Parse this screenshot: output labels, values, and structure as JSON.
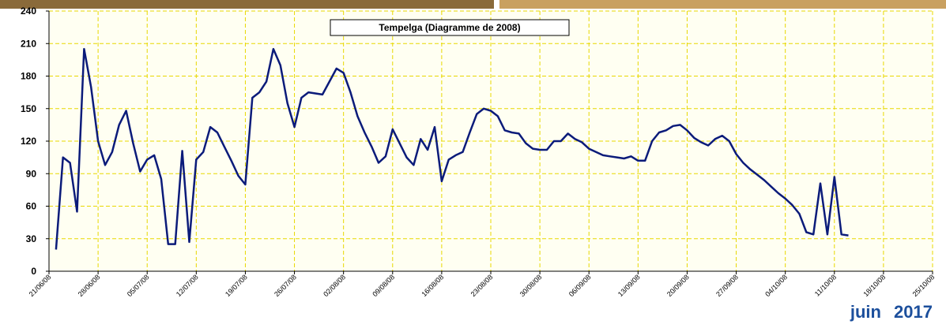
{
  "chart_data": {
    "type": "line",
    "title": "Tempelga (Diagramme de 2008)",
    "footer": "juin 2017",
    "x": [
      "22/06/08",
      "23/06/08",
      "24/06/08",
      "25/06/08",
      "26/06/08",
      "27/06/08",
      "28/06/08",
      "29/06/08",
      "30/06/08",
      "01/07/08",
      "02/07/08",
      "03/07/08",
      "04/07/08",
      "05/07/08",
      "06/07/08",
      "07/07/08",
      "08/07/08",
      "09/07/08",
      "10/07/08",
      "11/07/08",
      "12/07/08",
      "13/07/08",
      "14/07/08",
      "15/07/08",
      "16/07/08",
      "17/07/08",
      "18/07/08",
      "19/07/08",
      "20/07/08",
      "21/07/08",
      "22/07/08",
      "23/07/08",
      "24/07/08",
      "25/07/08",
      "26/07/08",
      "27/07/08",
      "28/07/08",
      "29/07/08",
      "30/07/08",
      "31/07/08",
      "01/08/08",
      "02/08/08",
      "03/08/08",
      "04/08/08",
      "05/08/08",
      "06/08/08",
      "07/08/08",
      "08/08/08",
      "09/08/08",
      "10/08/08",
      "11/08/08",
      "12/08/08",
      "13/08/08",
      "14/08/08",
      "15/08/08",
      "16/08/08",
      "17/08/08",
      "18/08/08",
      "19/08/08",
      "20/08/08",
      "21/08/08",
      "22/08/08",
      "23/08/08",
      "24/08/08",
      "25/08/08",
      "26/08/08",
      "27/08/08",
      "28/08/08",
      "29/08/08",
      "30/08/08",
      "31/08/08",
      "01/09/08",
      "02/09/08",
      "03/09/08",
      "04/09/08",
      "05/09/08",
      "06/09/08",
      "07/09/08",
      "08/09/08",
      "09/09/08",
      "10/09/08",
      "11/09/08",
      "12/09/08",
      "13/09/08",
      "14/09/08",
      "15/09/08",
      "16/09/08",
      "17/09/08",
      "18/09/08",
      "19/09/08",
      "20/09/08",
      "21/09/08",
      "22/09/08",
      "23/09/08",
      "24/09/08",
      "25/09/08",
      "26/09/08",
      "27/09/08",
      "28/09/08",
      "29/09/08",
      "30/09/08",
      "01/10/08",
      "02/10/08",
      "03/10/08",
      "04/10/08",
      "05/10/08",
      "06/10/08",
      "07/10/08",
      "08/10/08",
      "09/10/08",
      "10/10/08",
      "11/10/08",
      "12/10/08",
      "13/10/08"
    ],
    "series": [
      {
        "color": "#0b1b7a",
        "values": [
          20,
          105,
          100,
          55,
          205,
          170,
          120,
          98,
          110,
          135,
          148,
          118,
          92,
          103,
          107,
          85,
          25,
          25,
          111,
          27,
          103,
          110,
          133,
          128,
          115,
          102,
          88,
          80,
          160,
          165,
          175,
          205,
          190,
          155,
          133,
          160,
          165,
          164,
          163,
          175,
          187,
          183,
          165,
          143,
          128,
          115,
          100,
          106,
          131,
          118,
          105,
          98,
          122,
          112,
          133,
          83,
          103,
          107,
          110,
          128,
          145,
          150,
          148,
          143,
          130,
          128,
          127,
          118,
          113,
          112,
          112,
          120,
          120,
          127,
          122,
          119,
          113,
          110,
          107,
          106,
          105,
          104,
          106,
          102,
          102,
          120,
          128,
          130,
          134,
          135,
          130,
          123,
          119,
          116,
          122,
          125,
          120,
          108,
          100,
          94,
          89,
          84,
          78,
          72,
          67,
          61,
          53,
          36,
          34,
          81,
          34,
          87,
          34,
          33
        ]
      }
    ],
    "xlim": [
      "21/06/08",
      "25/10/08"
    ],
    "xticks": [
      "21/06/08",
      "28/06/08",
      "05/07/08",
      "12/07/08",
      "19/07/08",
      "26/07/08",
      "02/08/08",
      "09/08/08",
      "16/08/08",
      "23/08/08",
      "30/08/08",
      "06/09/08",
      "13/09/08",
      "20/09/08",
      "27/09/08",
      "04/10/08",
      "11/10/08",
      "18/10/08",
      "25/10/08"
    ],
    "ylim": [
      0,
      240
    ],
    "yticks": [
      0,
      30,
      60,
      90,
      120,
      150,
      180,
      210,
      240
    ],
    "grid": true
  }
}
